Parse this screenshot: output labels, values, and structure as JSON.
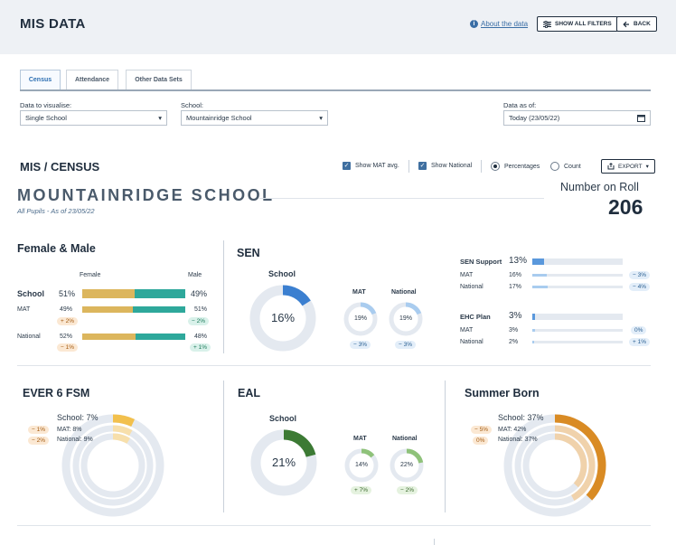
{
  "header": {
    "title": "MIS DATA",
    "about": "About the data",
    "show_filters": "SHOW ALL FILTERS",
    "back": "BACK"
  },
  "tabs": [
    {
      "label": "Census"
    },
    {
      "label": "Attendance"
    },
    {
      "label": "Other Data Sets"
    }
  ],
  "filters": {
    "visualise_label": "Data to visualise:",
    "visualise_value": "Single School",
    "school_label": "School:",
    "school_value": "Mountainridge School",
    "date_label": "Data as of:",
    "date_value": "Today (23/05/22)"
  },
  "section_bar": {
    "title": "MIS / CENSUS",
    "show_mat": "Show MAT avg.",
    "show_national": "Show National",
    "percentages": "Percentages",
    "count": "Count",
    "export": "EXPORT"
  },
  "school": {
    "name": "MOUNTAINRIDGE SCHOOL",
    "subtitle": "All Pupils - As of 23/05/22",
    "nor_label": "Number on Roll",
    "nor_value": "206"
  },
  "female_male": {
    "title": "Female & Male",
    "female_header": "Female",
    "male_header": "Male",
    "rows": [
      {
        "label": "School",
        "female": "51%",
        "male": "49%",
        "female_pct": 51,
        "diff_f": "",
        "diff_m": ""
      },
      {
        "label": "MAT",
        "female": "49%",
        "male": "51%",
        "female_pct": 49,
        "diff_f": "+ 2%",
        "diff_m": "− 2%"
      },
      {
        "label": "National",
        "female": "52%",
        "male": "48%",
        "female_pct": 52,
        "diff_f": "− 1%",
        "diff_m": "+ 1%"
      }
    ]
  },
  "sen": {
    "title": "SEN",
    "school_label": "School",
    "school_value": "16%",
    "school_pct": 16,
    "mat_label": "MAT",
    "mat_value": "19%",
    "mat_pct": 19,
    "mat_diff": "− 3%",
    "nat_label": "National",
    "nat_value": "19%",
    "nat_pct": 19,
    "nat_diff": "− 3%",
    "support": {
      "label": "SEN Support",
      "value": "13%",
      "pct": 13,
      "mat_label": "MAT",
      "mat_value": "16%",
      "mat_pct": 16,
      "mat_diff": "− 3%",
      "nat_label": "National",
      "nat_value": "17%",
      "nat_pct": 17,
      "nat_diff": "− 4%"
    },
    "ehc": {
      "label": "EHC Plan",
      "value": "3%",
      "pct": 3,
      "mat_label": "MAT",
      "mat_value": "3%",
      "mat_pct": 3,
      "mat_diff": "0%",
      "nat_label": "National",
      "nat_value": "2%",
      "nat_pct": 2,
      "nat_diff": "+ 1%"
    }
  },
  "ever6": {
    "title": "EVER 6 FSM",
    "school_text": "School: 7%",
    "mat_text": "MAT: 8%",
    "nat_text": "National: 9%",
    "school_pct": 7,
    "mat_pct": 8,
    "nat_pct": 9,
    "mat_diff": "− 1%",
    "nat_diff": "− 2%"
  },
  "eal": {
    "title": "EAL",
    "school_label": "School",
    "school_value": "21%",
    "school_pct": 21,
    "mat_label": "MAT",
    "mat_value": "14%",
    "mat_pct": 14,
    "mat_diff": "+ 7%",
    "nat_label": "National",
    "nat_value": "22%",
    "nat_pct": 22,
    "nat_diff": "− 2%"
  },
  "summer": {
    "title": "Summer Born",
    "school_text": "School: 37%",
    "mat_text": "MAT: 42%",
    "nat_text": "National: 37%",
    "school_pct": 37,
    "mat_pct": 42,
    "nat_pct": 37,
    "mat_diff": "− 5%",
    "nat_diff": "0%"
  },
  "colors": {
    "female": "#dcb65d",
    "male": "#2ea89b",
    "sen": "#3b7fd0",
    "sen_light": "#a9ccef",
    "track": "#e4e9f0",
    "ever6": "#f2c04d",
    "ever6_light": "#f7dfab",
    "eal": "#3c7a34",
    "eal_light": "#8fc27a",
    "summer": "#d98b24",
    "summer_light": "#f0d2ab"
  }
}
